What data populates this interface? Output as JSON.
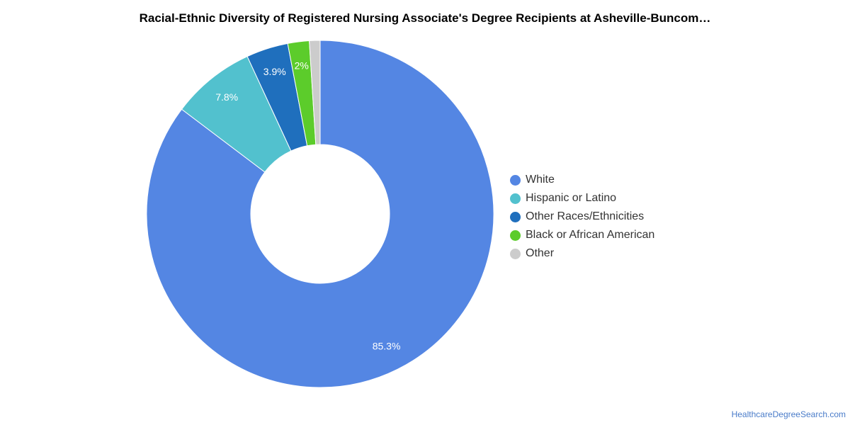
{
  "chart_data": {
    "type": "pie",
    "title": "Racial-Ethnic Diversity of Registered Nursing Associate's Degree Recipients at Asheville-Buncom…",
    "legend_position": "right",
    "slices": [
      {
        "name": "White",
        "value": 85.3,
        "label": "85.3%",
        "color": "#5486e3"
      },
      {
        "name": "Hispanic or Latino",
        "value": 7.8,
        "label": "7.8%",
        "color": "#52c1ce"
      },
      {
        "name": "Other Races/Ethnicities",
        "value": 3.9,
        "label": "3.9%",
        "color": "#1f6fbd"
      },
      {
        "name": "Black or African American",
        "value": 2.0,
        "label": "2%",
        "color": "#5ccc2b"
      },
      {
        "name": "Other",
        "value": 1.0,
        "label": "",
        "color": "#cccccc"
      }
    ]
  },
  "footer": {
    "source": "HealthcareDegreeSearch.com"
  }
}
